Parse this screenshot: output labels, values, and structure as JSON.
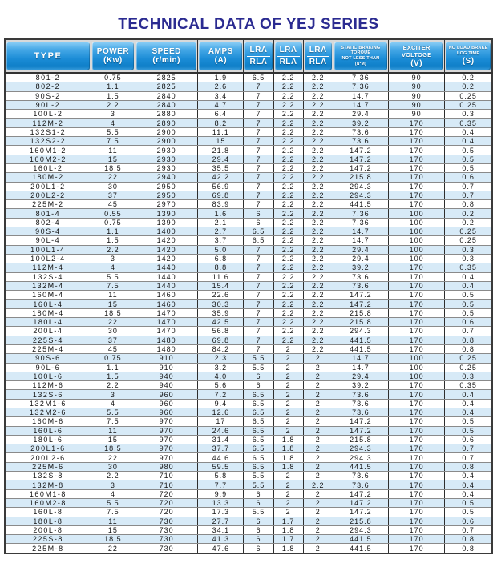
{
  "title": "TECHNICAL DATA OF YEJ SERIES",
  "colors": {
    "title_text": "#2b2b91",
    "header_gradient_top": "#8fd0f7",
    "header_gradient_bottom": "#0f7fc8",
    "header_text": "#ffffff",
    "row_alt_background": "#d7eaf7",
    "row_background": "#ffffff",
    "grid_border": "#3a3a3a"
  },
  "table": {
    "header": {
      "type": "TYPE",
      "power": [
        "POWER",
        "(Kw)"
      ],
      "speed": [
        "SPEED",
        "(r/min)"
      ],
      "amps": [
        "AMPS",
        "(A)"
      ],
      "lra": {
        "top": "LRA",
        "bottom": "RLA"
      },
      "static_torque": [
        "STATIC BRAKING TORQUE",
        "NOT LESS THAN",
        "(N*M)"
      ],
      "exciter": [
        "EXCITER VOLTOGE",
        "(V)"
      ],
      "noload": [
        "NO LOAD BRAKE",
        "LOG TIME",
        "(S)"
      ]
    },
    "rows": [
      [
        "801-2",
        "0.75",
        "2825",
        "1.9",
        "6.5",
        "2.2",
        "2.2",
        "7.36",
        "90",
        "0.2"
      ],
      [
        "802-2",
        "1.1",
        "2825",
        "2.6",
        "7",
        "2.2",
        "2.2",
        "7.36",
        "90",
        "0.2"
      ],
      [
        "90S-2",
        "1.5",
        "2840",
        "3.4",
        "7",
        "2.2",
        "2.2",
        "14.7",
        "90",
        "0.25"
      ],
      [
        "90L-2",
        "2.2",
        "2840",
        "4.7",
        "7",
        "2.2",
        "2.2",
        "14.7",
        "90",
        "0.25"
      ],
      [
        "100L-2",
        "3",
        "2880",
        "6.4",
        "7",
        "2.2",
        "2.2",
        "29.4",
        "90",
        "0.3"
      ],
      [
        "112M-2",
        "4",
        "2890",
        "8.2",
        "7",
        "2.2",
        "2.2",
        "39.2",
        "170",
        "0.35"
      ],
      [
        "132S1-2",
        "5.5",
        "2900",
        "11.1",
        "7",
        "2.2",
        "2.2",
        "73.6",
        "170",
        "0.4"
      ],
      [
        "132S2-2",
        "7.5",
        "2900",
        "15",
        "7",
        "2.2",
        "2.2",
        "73.6",
        "170",
        "0.4"
      ],
      [
        "160M1-2",
        "11",
        "2930",
        "21.8",
        "7",
        "2.2",
        "2.2",
        "147.2",
        "170",
        "0.5"
      ],
      [
        "160M2-2",
        "15",
        "2930",
        "29.4",
        "7",
        "2.2",
        "2.2",
        "147.2",
        "170",
        "0.5"
      ],
      [
        "160L-2",
        "18.5",
        "2930",
        "35.5",
        "7",
        "2.2",
        "2.2",
        "147.2",
        "170",
        "0.5"
      ],
      [
        "180M-2",
        "22",
        "2940",
        "42.2",
        "7",
        "2.2",
        "2.2",
        "215.8",
        "170",
        "0.6"
      ],
      [
        "200L1-2",
        "30",
        "2950",
        "56.9",
        "7",
        "2.2",
        "2.2",
        "294.3",
        "170",
        "0.7"
      ],
      [
        "200L2-2",
        "37",
        "2950",
        "69.8",
        "7",
        "2.2",
        "2.2",
        "294.3",
        "170",
        "0.7"
      ],
      [
        "225M-2",
        "45",
        "2970",
        "83.9",
        "7",
        "2.2",
        "2.2",
        "441.5",
        "170",
        "0.8"
      ],
      [
        "801-4",
        "0.55",
        "1390",
        "1.6",
        "6",
        "2.2",
        "2.2",
        "7.36",
        "100",
        "0.2"
      ],
      [
        "802-4",
        "0.75",
        "1390",
        "2.1",
        "6",
        "2.2",
        "2.2",
        "7.36",
        "100",
        "0.2"
      ],
      [
        "90S-4",
        "1.1",
        "1400",
        "2.7",
        "6.5",
        "2.2",
        "2.2",
        "14.7",
        "100",
        "0.25"
      ],
      [
        "90L-4",
        "1.5",
        "1420",
        "3.7",
        "6.5",
        "2.2",
        "2.2",
        "14.7",
        "100",
        "0.25"
      ],
      [
        "100L1-4",
        "2.2",
        "1420",
        "5.0",
        "7",
        "2.2",
        "2.2",
        "29.4",
        "100",
        "0.3"
      ],
      [
        "100L2-4",
        "3",
        "1420",
        "6.8",
        "7",
        "2.2",
        "2.2",
        "29.4",
        "100",
        "0.3"
      ],
      [
        "112M-4",
        "4",
        "1440",
        "8.8",
        "7",
        "2.2",
        "2.2",
        "39.2",
        "170",
        "0.35"
      ],
      [
        "132S-4",
        "5.5",
        "1440",
        "11.6",
        "7",
        "2.2",
        "2.2",
        "73.6",
        "170",
        "0.4"
      ],
      [
        "132M-4",
        "7.5",
        "1440",
        "15.4",
        "7",
        "2.2",
        "2.2",
        "73.6",
        "170",
        "0.4"
      ],
      [
        "160M-4",
        "11",
        "1460",
        "22.6",
        "7",
        "2.2",
        "2.2",
        "147.2",
        "170",
        "0.5"
      ],
      [
        "160L-4",
        "15",
        "1460",
        "30.3",
        "7",
        "2.2",
        "2.2",
        "147.2",
        "170",
        "0.5"
      ],
      [
        "180M-4",
        "18.5",
        "1470",
        "35.9",
        "7",
        "2.2",
        "2.2",
        "215.8",
        "170",
        "0.5"
      ],
      [
        "180L-4",
        "22",
        "1470",
        "42.5",
        "7",
        "2.2",
        "2.2",
        "215.8",
        "170",
        "0.6"
      ],
      [
        "200L-4",
        "30",
        "1470",
        "56.8",
        "7",
        "2.2",
        "2.2",
        "294.3",
        "170",
        "0.7"
      ],
      [
        "225S-4",
        "37",
        "1480",
        "69.8",
        "7",
        "2.2",
        "2.2",
        "441.5",
        "170",
        "0.8"
      ],
      [
        "225M-4",
        "45",
        "1480",
        "84.2",
        "7",
        "2",
        "2.2",
        "441.5",
        "170",
        "0.8"
      ],
      [
        "90S-6",
        "0.75",
        "910",
        "2.3",
        "5.5",
        "2",
        "2",
        "14.7",
        "100",
        "0.25"
      ],
      [
        "90L-6",
        "1.1",
        "910",
        "3.2",
        "5.5",
        "2",
        "2",
        "14.7",
        "100",
        "0.25"
      ],
      [
        "100L-6",
        "1.5",
        "940",
        "4.0",
        "6",
        "2",
        "2",
        "29.4",
        "100",
        "0.3"
      ],
      [
        "112M-6",
        "2.2",
        "940",
        "5.6",
        "6",
        "2",
        "2",
        "39.2",
        "170",
        "0.35"
      ],
      [
        "132S-6",
        "3",
        "960",
        "7.2",
        "6.5",
        "2",
        "2",
        "73.6",
        "170",
        "0.4"
      ],
      [
        "132M1-6",
        "4",
        "960",
        "9.4",
        "6.5",
        "2",
        "2",
        "73.6",
        "170",
        "0.4"
      ],
      [
        "132M2-6",
        "5.5",
        "960",
        "12.6",
        "6.5",
        "2",
        "2",
        "73.6",
        "170",
        "0.4"
      ],
      [
        "160M-6",
        "7.5",
        "970",
        "17",
        "6.5",
        "2",
        "2",
        "147.2",
        "170",
        "0.5"
      ],
      [
        "160L-6",
        "11",
        "970",
        "24.6",
        "6.5",
        "2",
        "2",
        "147.2",
        "170",
        "0.5"
      ],
      [
        "180L-6",
        "15",
        "970",
        "31.4",
        "6.5",
        "1.8",
        "2",
        "215.8",
        "170",
        "0.6"
      ],
      [
        "200L1-6",
        "18.5",
        "970",
        "37.7",
        "6.5",
        "1.8",
        "2",
        "294.3",
        "170",
        "0.7"
      ],
      [
        "200L2-6",
        "22",
        "970",
        "44.6",
        "6.5",
        "1.8",
        "2",
        "294.3",
        "170",
        "0.7"
      ],
      [
        "225M-6",
        "30",
        "980",
        "59.5",
        "6.5",
        "1.8",
        "2",
        "441.5",
        "170",
        "0.8"
      ],
      [
        "132S-8",
        "2.2",
        "710",
        "5.8",
        "5.5",
        "2",
        "2",
        "73.6",
        "170",
        "0.4"
      ],
      [
        "132M-8",
        "3",
        "710",
        "7.7",
        "5.5",
        "2",
        "2.2",
        "73.6",
        "170",
        "0.4"
      ],
      [
        "160M1-8",
        "4",
        "720",
        "9.9",
        "6",
        "2",
        "2",
        "147.2",
        "170",
        "0.4"
      ],
      [
        "160M2-8",
        "5.5",
        "720",
        "13.3",
        "6",
        "2",
        "2",
        "147.2",
        "170",
        "0.5"
      ],
      [
        "160L-8",
        "7.5",
        "720",
        "17.3",
        "5.5",
        "2",
        "2",
        "147.2",
        "170",
        "0.5"
      ],
      [
        "180L-8",
        "11",
        "730",
        "27.7",
        "6",
        "1.7",
        "2",
        "215.8",
        "170",
        "0.6"
      ],
      [
        "200L-8",
        "15",
        "730",
        "34.1",
        "6",
        "1.8",
        "2",
        "294.3",
        "170",
        "0.7"
      ],
      [
        "225S-8",
        "18.5",
        "730",
        "41.3",
        "6",
        "1.7",
        "2",
        "441.5",
        "170",
        "0.8"
      ],
      [
        "225M-8",
        "22",
        "730",
        "47.6",
        "6",
        "1.8",
        "2",
        "441.5",
        "170",
        "0.8"
      ]
    ]
  }
}
